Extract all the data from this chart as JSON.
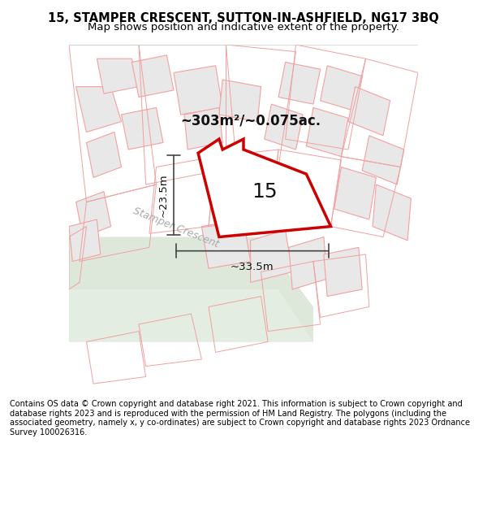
{
  "title_line1": "15, STAMPER CRESCENT, SUTTON-IN-ASHFIELD, NG17 3BQ",
  "title_line2": "Map shows position and indicative extent of the property.",
  "footer_text": "Contains OS data © Crown copyright and database right 2021. This information is subject to Crown copyright and database rights 2023 and is reproduced with the permission of HM Land Registry. The polygons (including the associated geometry, namely x, y co-ordinates) are subject to Crown copyright and database rights 2023 Ordnance Survey 100026316.",
  "area_label": "~303m²/~0.075ac.",
  "number_label": "15",
  "dim_h_label": "~23.5m",
  "dim_w_label": "~33.5m",
  "street_label": "Stamper Crescent",
  "map_bg": "#f0f4ef",
  "road_bg": "#e8ede7",
  "property_fill": "#ffffff",
  "property_stroke": "#cc0000",
  "neighbor_stroke": "#f5a0a0",
  "neighbor_fill": "#e8e8e8",
  "dim_color": "#444444",
  "title_bg": "#ffffff",
  "footer_bg": "#ffffff"
}
